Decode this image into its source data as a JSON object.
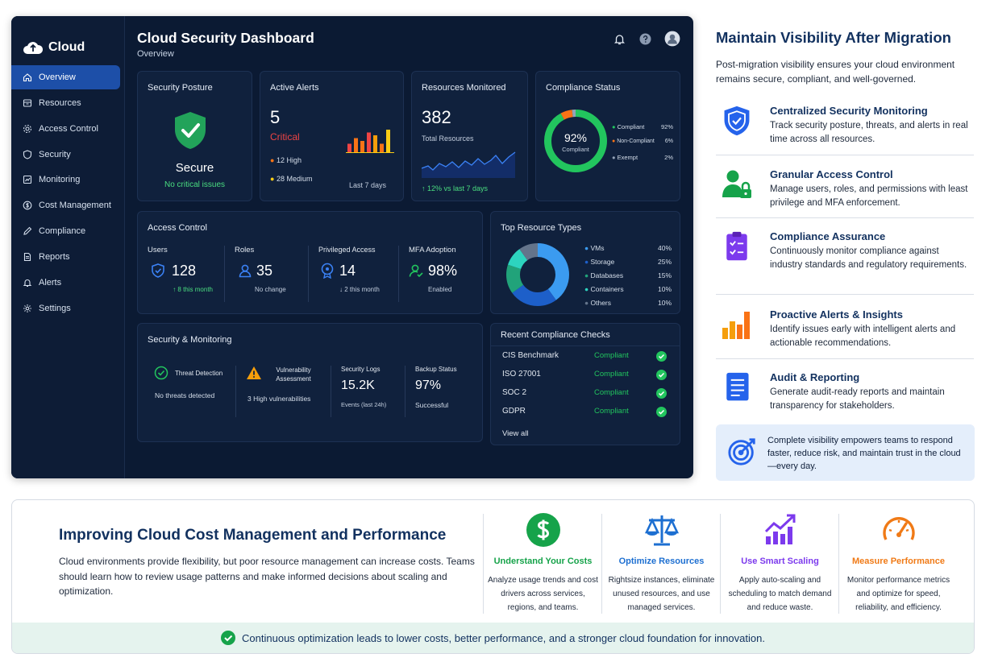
{
  "brand": {
    "name": "Cloud"
  },
  "sidebar": {
    "items": [
      {
        "label": "Overview",
        "icon": "home-icon"
      },
      {
        "label": "Resources",
        "icon": "box-icon"
      },
      {
        "label": "Access Control",
        "icon": "gear-icon"
      },
      {
        "label": "Security",
        "icon": "shield-icon"
      },
      {
        "label": "Monitoring",
        "icon": "chart-icon"
      },
      {
        "label": "Cost Management",
        "icon": "dollar-icon"
      },
      {
        "label": "Compliance",
        "icon": "pen-icon"
      },
      {
        "label": "Reports",
        "icon": "document-icon"
      },
      {
        "label": "Alerts",
        "icon": "bell-icon"
      },
      {
        "label": "Settings",
        "icon": "settings-icon"
      }
    ]
  },
  "header": {
    "title": "Cloud Security Dashboard",
    "subtitle": "Overview"
  },
  "posture": {
    "title": "Security Posture",
    "status": "Secure",
    "note": "No critical issues"
  },
  "alerts": {
    "title": "Active Alerts",
    "count": "5",
    "level": "Critical",
    "high": "12 High",
    "medium": "28 Medium",
    "period": "Last 7 days",
    "bars": [
      3,
      5,
      4,
      7,
      6,
      3,
      8
    ]
  },
  "resources": {
    "title": "Resources Monitored",
    "count": "382",
    "label": "Total Resources",
    "change": "↑ 12% vs last 7 days"
  },
  "compliance": {
    "title": "Compliance Status",
    "percent": "92%",
    "center_label": "Compliant",
    "legend": [
      {
        "label": "Compliant",
        "value": "92%",
        "color": "#22c55e",
        "share": 92
      },
      {
        "label": "Non-Compliant",
        "value": "6%",
        "color": "#f97316",
        "share": 6
      },
      {
        "label": "Exempt",
        "value": "2%",
        "color": "#94a3b8",
        "share": 2
      }
    ]
  },
  "access": {
    "title": "Access Control",
    "stats": [
      {
        "label": "Users",
        "value": "128",
        "note": "↑ 8 this month",
        "icon": "shield-user-icon"
      },
      {
        "label": "Roles",
        "value": "35",
        "note": "No change",
        "icon": "user-icon"
      },
      {
        "label": "Privileged Access",
        "value": "14",
        "note": "↓ 2 this month",
        "icon": "badge-icon"
      },
      {
        "label": "MFA Adoption",
        "value": "98%",
        "note": "Enabled",
        "icon": "user-check-icon"
      }
    ]
  },
  "top_types": {
    "title": "Top Resource Types",
    "items": [
      {
        "label": "VMs",
        "value": "40%",
        "share": 40,
        "color": "#3b9bf0"
      },
      {
        "label": "Storage",
        "value": "25%",
        "share": 25,
        "color": "#1d5fc9"
      },
      {
        "label": "Databases",
        "value": "15%",
        "share": 15,
        "color": "#21a37a"
      },
      {
        "label": "Containers",
        "value": "10%",
        "share": 10,
        "color": "#2dd4bf"
      },
      {
        "label": "Others",
        "value": "10%",
        "share": 10,
        "color": "#64748b"
      }
    ]
  },
  "secmon": {
    "title": "Security & Monitoring",
    "threat": {
      "label": "Threat Detection",
      "note": "No threats detected"
    },
    "vuln": {
      "label": "Vulnerability Assessment",
      "note": "3 High vulnerabilities"
    },
    "logs": {
      "label": "Security Logs",
      "value": "15.2K",
      "note": "Events (last 24h)"
    },
    "backup": {
      "label": "Backup Status",
      "value": "97%",
      "note": "Successful"
    }
  },
  "checks": {
    "title": "Recent Compliance Checks",
    "rows": [
      {
        "name": "CIS Benchmark",
        "status": "Compliant"
      },
      {
        "name": "ISO 27001",
        "status": "Compliant"
      },
      {
        "name": "SOC 2",
        "status": "Compliant"
      },
      {
        "name": "GDPR",
        "status": "Compliant"
      }
    ],
    "view_all": "View all"
  },
  "right_panel": {
    "title": "Maintain Visibility After Migration",
    "subtitle": "Post-migration visibility ensures your cloud environment remains secure, compliant, and well-governed.",
    "features": [
      {
        "title": "Centralized Security Monitoring",
        "desc": "Track security posture, threats, and alerts in real time across all resources.",
        "icon": "shield-check-icon"
      },
      {
        "title": "Granular Access Control",
        "desc": "Manage users, roles, and permissions with least privilege and MFA enforcement.",
        "icon": "user-lock-icon"
      },
      {
        "title": "Compliance Assurance",
        "desc": "Continuously monitor compliance against industry standards and regulatory requirements.",
        "icon": "clipboard-check-icon"
      },
      {
        "title": "Proactive Alerts & Insights",
        "desc": "Identify issues early with intelligent alerts and actionable recommendations.",
        "icon": "bar-chart-icon"
      },
      {
        "title": "Audit & Reporting",
        "desc": "Generate audit-ready reports and maintain transparency for stakeholders.",
        "icon": "report-icon"
      }
    ],
    "callout": "Complete visibility empowers teams to respond faster, reduce risk, and maintain trust in the cloud—every day."
  },
  "bottom": {
    "title": "Improving Cloud Cost Management and Performance",
    "text": "Cloud environments provide flexibility, but poor resource management can increase costs. Teams should learn how to review usage patterns and make informed decisions about scaling and optimization.",
    "columns": [
      {
        "title": "Understand Your Costs",
        "desc": "Analyze usage trends and cost drivers across services, regions, and teams.",
        "color": "#16a34a",
        "icon": "dollar-icon"
      },
      {
        "title": "Optimize Resources",
        "desc": "Rightsize instances, eliminate unused resources, and use managed services.",
        "color": "#1d6fd1",
        "icon": "scale-icon"
      },
      {
        "title": "Use Smart Scaling",
        "desc": "Apply auto-scaling and scheduling to match demand and reduce waste.",
        "color": "#7c3aed",
        "icon": "trend-up-icon"
      },
      {
        "title": "Measure Performance",
        "desc": "Monitor performance metrics and optimize for speed, reliability, and efficiency.",
        "color": "#f07a16",
        "icon": "gauge-icon"
      }
    ],
    "footer": "Continuous optimization leads to lower costs, better performance, and a stronger cloud foundation for innovation."
  }
}
